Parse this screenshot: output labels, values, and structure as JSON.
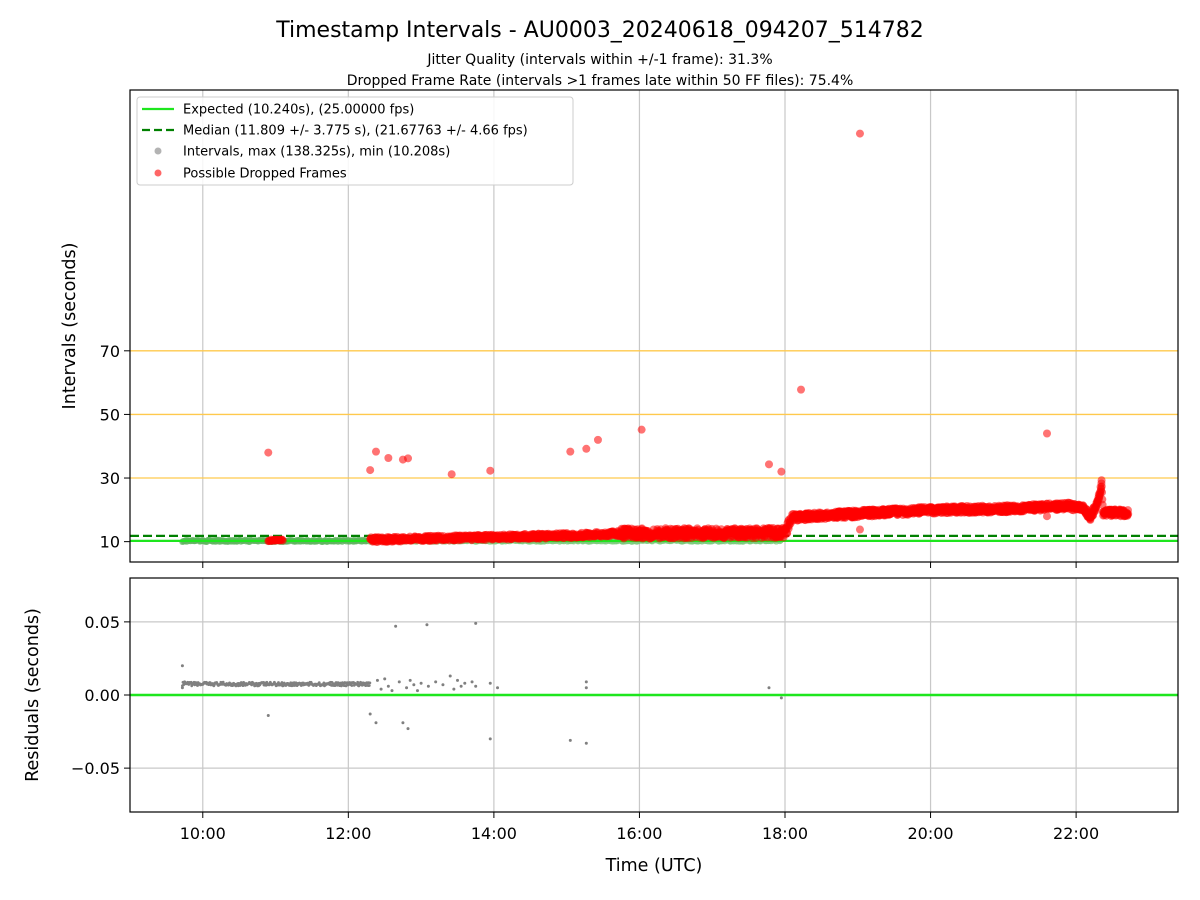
{
  "figure": {
    "title": "Timestamp Intervals - AU0003_20240618_094207_514782",
    "subtitle_1": "Jitter Quality (intervals within +/-1 frame): 31.3%",
    "subtitle_2": "Dropped Frame Rate (intervals >1 frames late within 50 FF files): 75.4%"
  },
  "colors": {
    "expected": "#1ee61e",
    "median": "#008000",
    "intervals": "#808080",
    "dropped": "#ff0000",
    "reference_lines": "#ffc94d",
    "grid": "#c8c8c8"
  },
  "chart_data": [
    {
      "type": "scatter",
      "panel": "intervals",
      "xlabel": "",
      "ylabel": "Intervals (seconds)",
      "x_unit": "hour (UTC)",
      "xlim": [
        9.0,
        23.4
      ],
      "ylim": [
        3.6,
        152
      ],
      "x_ticks": [
        10,
        12,
        14,
        16,
        18,
        20,
        22
      ],
      "x_tick_labels": [
        "10:00",
        "12:00",
        "14:00",
        "16:00",
        "18:00",
        "20:00",
        "22:00"
      ],
      "y_ticks": [
        10,
        30,
        50,
        70
      ],
      "y_tick_labels": [
        "10",
        "30",
        "50",
        "70"
      ],
      "grid": "vertical",
      "reference_lines": [
        30,
        50,
        70
      ],
      "legend": {
        "placement": "top-left",
        "entries": [
          "Expected (10.240s), (25.00000 fps)",
          "Median (11.809 +/- 3.775 s), (21.67763 +/- 4.66 fps)",
          "Intervals, max (138.325s), min (10.208s)",
          "Possible Dropped Frames"
        ]
      },
      "expected_value": 10.24,
      "median_value": 11.809,
      "normal_intervals": {
        "segments": [
          {
            "x_start": 9.72,
            "x_end": 12.28,
            "y": 10.25
          },
          {
            "x_start": 12.3,
            "x_end": 17.95,
            "y": 10.3
          }
        ]
      },
      "dropped_trend": [
        [
          10.9,
          10.4
        ],
        [
          11.1,
          10.4
        ],
        [
          12.3,
          10.6
        ],
        [
          13.0,
          11.0
        ],
        [
          14.0,
          11.4
        ],
        [
          15.0,
          11.9
        ],
        [
          15.8,
          12.6
        ],
        [
          16.5,
          12.6
        ],
        [
          17.5,
          12.6
        ],
        [
          18.0,
          12.8
        ],
        [
          18.1,
          17.6
        ],
        [
          19.0,
          18.8
        ],
        [
          20.0,
          19.9
        ],
        [
          21.0,
          20.3
        ],
        [
          21.9,
          21.2
        ],
        [
          22.1,
          20.4
        ],
        [
          22.2,
          17.8
        ],
        [
          22.3,
          22.5
        ],
        [
          22.35,
          28.0
        ],
        [
          22.37,
          19.2
        ],
        [
          22.72,
          19.0
        ]
      ],
      "dropped_outliers": [
        [
          10.9,
          38.0
        ],
        [
          12.3,
          32.5
        ],
        [
          12.38,
          38.3
        ],
        [
          12.55,
          36.3
        ],
        [
          12.75,
          35.8
        ],
        [
          12.82,
          36.2
        ],
        [
          13.42,
          31.2
        ],
        [
          13.95,
          32.3
        ],
        [
          15.05,
          38.3
        ],
        [
          15.27,
          39.2
        ],
        [
          15.43,
          42.0
        ],
        [
          16.03,
          45.2
        ],
        [
          17.78,
          34.3
        ],
        [
          17.95,
          32.0
        ],
        [
          18.22,
          57.8
        ],
        [
          19.03,
          138.3
        ],
        [
          21.6,
          44.0
        ],
        [
          19.03,
          13.8
        ],
        [
          21.6,
          18.0
        ],
        [
          22.35,
          29.3
        ]
      ]
    },
    {
      "type": "scatter",
      "panel": "residuals",
      "xlabel": "Time (UTC)",
      "ylabel": "Residuals (seconds)",
      "x_unit": "hour (UTC)",
      "xlim": [
        9.0,
        23.4
      ],
      "ylim": [
        -0.08,
        0.08
      ],
      "x_ticks": [
        10,
        12,
        14,
        16,
        18,
        20,
        22
      ],
      "x_tick_labels": [
        "10:00",
        "12:00",
        "14:00",
        "16:00",
        "18:00",
        "20:00",
        "22:00"
      ],
      "y_ticks": [
        0.05,
        0.0,
        -0.05
      ],
      "y_tick_labels": [
        "0.05",
        "0.00",
        "−0.05"
      ],
      "grid": "both",
      "zero_line": 0.0,
      "band": {
        "x_start": 9.72,
        "x_end": 12.3,
        "y": 0.0075
      },
      "points": [
        [
          9.72,
          0.02
        ],
        [
          9.72,
          0.005
        ],
        [
          9.75,
          0.009
        ],
        [
          10.9,
          -0.014
        ],
        [
          12.3,
          -0.013
        ],
        [
          12.38,
          -0.019
        ],
        [
          12.65,
          0.047
        ],
        [
          12.75,
          -0.019
        ],
        [
          12.82,
          -0.023
        ],
        [
          13.08,
          0.048
        ],
        [
          13.75,
          0.049
        ],
        [
          13.95,
          -0.03
        ],
        [
          13.95,
          0.008
        ],
        [
          14.05,
          0.005
        ],
        [
          15.05,
          -0.031
        ],
        [
          15.27,
          0.009
        ],
        [
          15.27,
          0.005
        ],
        [
          15.27,
          -0.033
        ],
        [
          17.78,
          0.005
        ],
        [
          17.95,
          -0.002
        ],
        [
          12.4,
          0.01
        ],
        [
          12.45,
          0.004
        ],
        [
          12.5,
          0.011
        ],
        [
          12.55,
          0.006
        ],
        [
          12.6,
          0.003
        ],
        [
          12.7,
          0.009
        ],
        [
          12.8,
          0.005
        ],
        [
          12.85,
          0.01
        ],
        [
          12.9,
          0.007
        ],
        [
          12.95,
          0.003
        ],
        [
          13.0,
          0.008
        ],
        [
          13.1,
          0.006
        ],
        [
          13.2,
          0.009
        ],
        [
          13.3,
          0.007
        ],
        [
          13.4,
          0.013
        ],
        [
          13.45,
          0.004
        ],
        [
          13.5,
          0.01
        ],
        [
          13.55,
          0.006
        ],
        [
          13.6,
          0.008
        ],
        [
          13.7,
          0.009
        ],
        [
          13.75,
          0.006
        ]
      ]
    }
  ]
}
